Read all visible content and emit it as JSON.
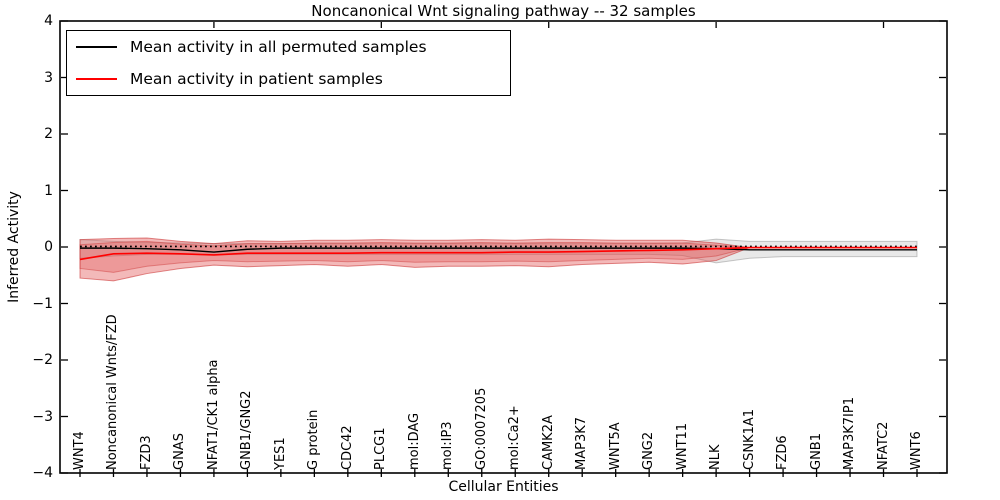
{
  "chart_data": {
    "type": "line",
    "title": "Noncanonical Wnt signaling pathway -- 32 samples",
    "xlabel": "Cellular Entities",
    "ylabel": "Inferred Activity",
    "ylim": [
      -4,
      4
    ],
    "grid": false,
    "legend_position": "upper left",
    "yticks": [
      {
        "label": "4",
        "value": 4
      },
      {
        "label": "3",
        "value": 3
      },
      {
        "label": "2",
        "value": 2
      },
      {
        "label": "1",
        "value": 1
      },
      {
        "label": "0",
        "value": 0
      },
      {
        "label": "−1",
        "value": -1
      },
      {
        "label": "−2",
        "value": -2
      },
      {
        "label": "−3",
        "value": -3
      },
      {
        "label": "−4",
        "value": -4
      }
    ],
    "categories": [
      "WNT4",
      "Noncanonical Wnts/FZD",
      "FZD3",
      "GNAS",
      "NFAT1/CK1 alpha",
      "GNB1/GNG2",
      "YES1",
      "G protein",
      "CDC42",
      "PLCG1",
      "mol:DAG",
      "mol:IP3",
      "GO:0007205",
      "mol:Ca2+",
      "CAMK2A",
      "MAP3K7",
      "WNT5A",
      "GNG2",
      "WNT11",
      "NLK",
      "CSNK1A1",
      "FZD6",
      "GNB1",
      "MAP3K7IP1",
      "NFATC2",
      "WNT6"
    ],
    "series": [
      {
        "name": "Mean activity in all permuted samples",
        "color": "#000000",
        "style": "solid",
        "width": 1.4,
        "values": [
          -0.02,
          -0.02,
          -0.03,
          -0.05,
          -0.09,
          -0.04,
          -0.02,
          -0.02,
          -0.02,
          -0.02,
          -0.02,
          -0.02,
          -0.02,
          -0.02,
          -0.02,
          -0.02,
          -0.02,
          -0.02,
          -0.02,
          -0.03,
          -0.05,
          -0.05,
          -0.05,
          -0.05,
          -0.05,
          -0.05
        ]
      },
      {
        "name": "Permuted samples reference (dotted)",
        "color": "#000000",
        "style": "dotted",
        "width": 1.6,
        "values": [
          0.01,
          0.01,
          0.01,
          0.01,
          0.01,
          0.01,
          0.01,
          0.01,
          0.01,
          0.01,
          0.01,
          0.01,
          0.01,
          0.01,
          0.01,
          0.01,
          0.01,
          0.01,
          0.01,
          0.01,
          0.01,
          0.01,
          0.01,
          0.01,
          0.01,
          0.01
        ]
      },
      {
        "name": "Mean activity in patient samples",
        "color": "#ff0000",
        "style": "solid",
        "width": 1.6,
        "values": [
          -0.22,
          -0.12,
          -0.11,
          -0.12,
          -0.14,
          -0.11,
          -0.11,
          -0.11,
          -0.11,
          -0.1,
          -0.1,
          -0.1,
          -0.1,
          -0.09,
          -0.09,
          -0.08,
          -0.07,
          -0.06,
          -0.05,
          -0.03,
          -0.01,
          -0.01,
          -0.01,
          -0.01,
          -0.01,
          -0.01
        ]
      }
    ],
    "bands": [
      {
        "name": "permuted-samples-range",
        "fill": "rgba(100,100,100,0.15)",
        "stroke": "rgba(100,100,100,0.35)",
        "top": [
          0.13,
          0.1,
          0.08,
          0.07,
          0.06,
          0.06,
          0.06,
          0.06,
          0.06,
          0.06,
          0.06,
          0.06,
          0.06,
          0.06,
          0.06,
          0.06,
          0.06,
          0.06,
          0.07,
          0.14,
          0.1,
          0.1,
          0.1,
          0.1,
          0.1,
          0.1
        ],
        "bottom": [
          -0.2,
          -0.16,
          -0.13,
          -0.13,
          -0.14,
          -0.13,
          -0.13,
          -0.13,
          -0.13,
          -0.13,
          -0.13,
          -0.13,
          -0.13,
          -0.13,
          -0.13,
          -0.13,
          -0.13,
          -0.13,
          -0.15,
          -0.28,
          -0.2,
          -0.17,
          -0.17,
          -0.17,
          -0.17,
          -0.17
        ]
      },
      {
        "name": "patient-samples-outer-band",
        "fill": "rgba(224,80,80,0.40)",
        "stroke": "rgba(200,40,40,0.55)",
        "top": [
          0.13,
          0.15,
          0.16,
          0.1,
          0.06,
          0.11,
          0.1,
          0.12,
          0.12,
          0.13,
          0.12,
          0.12,
          0.13,
          0.12,
          0.14,
          0.13,
          0.12,
          0.12,
          0.12,
          0.07,
          -0.01,
          -0.01,
          -0.01,
          -0.01,
          -0.01,
          -0.01
        ],
        "bottom": [
          -0.55,
          -0.6,
          -0.47,
          -0.38,
          -0.32,
          -0.35,
          -0.33,
          -0.31,
          -0.34,
          -0.31,
          -0.36,
          -0.34,
          -0.34,
          -0.33,
          -0.35,
          -0.31,
          -0.29,
          -0.27,
          -0.3,
          -0.24,
          -0.01,
          -0.01,
          -0.01,
          -0.01,
          -0.01,
          -0.01
        ]
      },
      {
        "name": "patient-samples-inner-band",
        "fill": "rgba(224,80,80,0.30)",
        "stroke": "rgba(200,40,40,0.40)",
        "top": [
          0.04,
          0.08,
          0.1,
          0.05,
          0.02,
          0.06,
          0.06,
          0.07,
          0.07,
          0.08,
          0.07,
          0.07,
          0.08,
          0.07,
          0.08,
          0.08,
          0.07,
          0.07,
          0.07,
          0.03,
          -0.01,
          -0.01,
          -0.01,
          -0.01,
          -0.01,
          -0.01
        ],
        "bottom": [
          -0.38,
          -0.45,
          -0.34,
          -0.28,
          -0.24,
          -0.26,
          -0.25,
          -0.24,
          -0.26,
          -0.24,
          -0.27,
          -0.26,
          -0.26,
          -0.25,
          -0.26,
          -0.24,
          -0.22,
          -0.2,
          -0.22,
          -0.16,
          -0.01,
          -0.01,
          -0.01,
          -0.01,
          -0.01,
          -0.01
        ]
      }
    ]
  },
  "legend": {
    "items": [
      {
        "label": "Mean activity in all permuted samples",
        "color": "#000000"
      },
      {
        "label": "Mean activity in patient samples",
        "color": "#ff0000"
      }
    ]
  }
}
